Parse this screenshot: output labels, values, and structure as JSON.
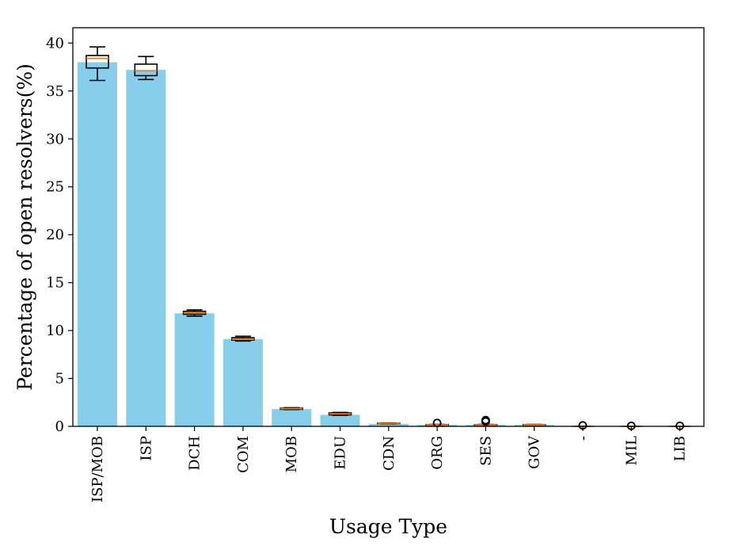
{
  "chart_data": {
    "type": "bar",
    "xlabel": "Usage Type",
    "ylabel": "Percentage of open resolvers(%)",
    "ylim": [
      0,
      41.6
    ],
    "yticks": [
      0,
      5,
      10,
      15,
      20,
      25,
      30,
      35,
      40
    ],
    "categories": [
      "ISP/MOB",
      "ISP",
      "DCH",
      "COM",
      "MOB",
      "EDU",
      "CDN",
      "ORG",
      "SES",
      "GOV",
      "-",
      "MIL",
      "LIB"
    ],
    "values": [
      38.0,
      37.2,
      11.8,
      9.1,
      1.8,
      1.2,
      0.25,
      0.15,
      0.15,
      0.15,
      0.0,
      0.0,
      0.0
    ],
    "boxplots": [
      {
        "whisker_low": 36.1,
        "q1": 37.4,
        "median": 38.4,
        "q3": 38.7,
        "whisker_high": 39.6,
        "outliers": []
      },
      {
        "whisker_low": 36.2,
        "q1": 36.6,
        "median": 37.1,
        "q3": 37.8,
        "whisker_high": 38.6,
        "outliers": []
      },
      {
        "whisker_low": 11.5,
        "q1": 11.7,
        "median": 11.85,
        "q3": 12.0,
        "whisker_high": 12.15,
        "outliers": []
      },
      {
        "whisker_low": 8.9,
        "q1": 9.0,
        "median": 9.1,
        "q3": 9.25,
        "whisker_high": 9.4,
        "outliers": []
      },
      {
        "whisker_low": 1.75,
        "q1": 1.78,
        "median": 1.85,
        "q3": 1.9,
        "whisker_high": 1.95,
        "outliers": []
      },
      {
        "whisker_low": 1.15,
        "q1": 1.2,
        "median": 1.3,
        "q3": 1.4,
        "whisker_high": 1.45,
        "outliers": []
      },
      {
        "whisker_low": 0.25,
        "q1": 0.27,
        "median": 0.3,
        "q3": 0.33,
        "whisker_high": 0.35,
        "outliers": []
      },
      {
        "whisker_low": 0.1,
        "q1": 0.12,
        "median": 0.15,
        "q3": 0.18,
        "whisker_high": 0.2,
        "outliers": [
          0.35
        ]
      },
      {
        "whisker_low": 0.08,
        "q1": 0.1,
        "median": 0.15,
        "q3": 0.18,
        "whisker_high": 0.2,
        "outliers": [
          0.5,
          0.65
        ]
      },
      {
        "whisker_low": 0.1,
        "q1": 0.12,
        "median": 0.15,
        "q3": 0.18,
        "whisker_high": 0.2,
        "outliers": []
      },
      {
        "whisker_low": 0.0,
        "q1": 0.0,
        "median": 0.0,
        "q3": 0.0,
        "whisker_high": 0.0,
        "outliers": [
          0.1
        ]
      },
      {
        "whisker_low": 0.0,
        "q1": 0.0,
        "median": 0.0,
        "q3": 0.0,
        "whisker_high": 0.0,
        "outliers": [
          0.05
        ]
      },
      {
        "whisker_low": 0.0,
        "q1": 0.0,
        "median": 0.0,
        "q3": 0.0,
        "whisker_high": 0.0,
        "outliers": [
          0.05
        ]
      }
    ],
    "colors": {
      "bar": "#87ceeb",
      "box": "#000000",
      "median": "#ff7f0e",
      "axes": "#000000"
    },
    "grid": false,
    "legend": "none"
  }
}
